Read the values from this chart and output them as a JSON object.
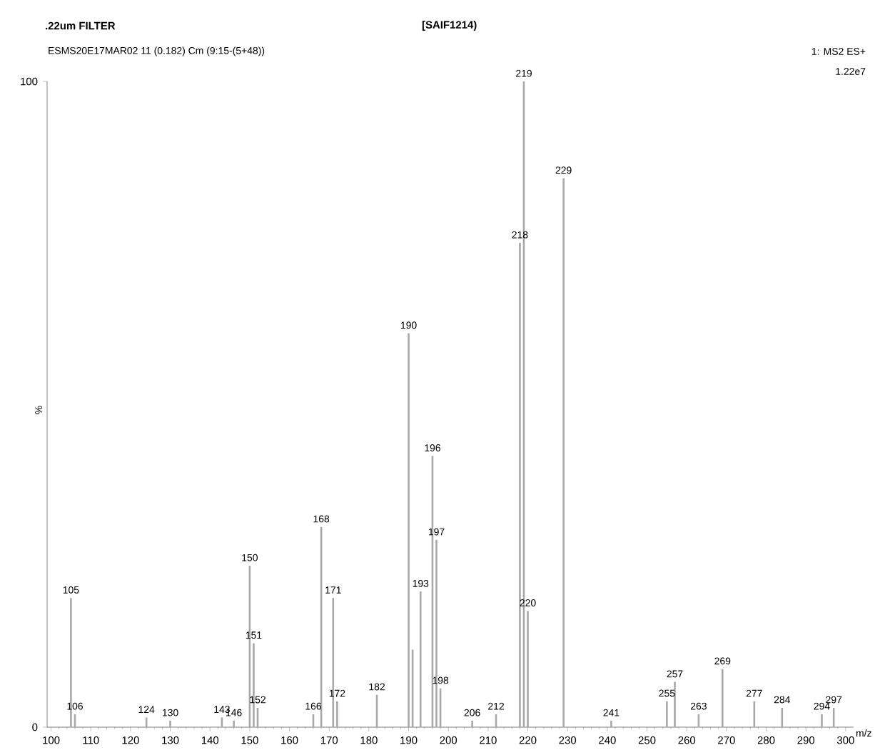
{
  "chart_data": {
    "type": "bar",
    "title": ".22um FILTER",
    "subtitle": "[SAIF1214)",
    "xlabel": "m/z",
    "ylabel": "%",
    "x": [
      105,
      106,
      124,
      130,
      143,
      146,
      150,
      151,
      152,
      166,
      168,
      171,
      172,
      182,
      190,
      191,
      193,
      196,
      197,
      198,
      206,
      212,
      218,
      219,
      220,
      229,
      241,
      255,
      257,
      263,
      269,
      277,
      284,
      294,
      297
    ],
    "values": [
      20,
      2,
      1.5,
      1,
      1.5,
      1,
      25,
      13,
      3,
      2,
      31,
      20,
      4,
      5,
      61,
      12,
      21,
      42,
      29,
      6,
      1,
      2,
      75,
      100,
      18,
      85,
      1,
      4,
      7,
      2,
      9,
      4,
      3,
      2,
      3
    ],
    "color": "#a8a8a8",
    "xlim": [
      99,
      302
    ],
    "ylim": [
      0,
      100
    ],
    "xticks": [
      100,
      110,
      120,
      130,
      140,
      150,
      160,
      170,
      180,
      190,
      200,
      210,
      220,
      230,
      240,
      250,
      260,
      270,
      280,
      290,
      300
    ],
    "yticks": [
      0,
      100
    ],
    "annotations": [
      "ESMS20E17MAR02 11 (0.182) Cm (9:15-(5+48))",
      "1: MS2 ES+",
      "1.22e7",
      {
        "text": "105",
        "x": 105,
        "y": 20
      },
      {
        "text": "106",
        "x": 106,
        "y": 2
      },
      {
        "text": "124",
        "x": 124,
        "y": 1.5
      },
      {
        "text": "130",
        "x": 130,
        "y": 1
      },
      {
        "text": "143",
        "x": 143,
        "y": 1.5
      },
      {
        "text": "146",
        "x": 146,
        "y": 1
      },
      {
        "text": "150",
        "x": 150,
        "y": 25
      },
      {
        "text": "151",
        "x": 151,
        "y": 13
      },
      {
        "text": "152",
        "x": 152,
        "y": 3
      },
      {
        "text": "166",
        "x": 166,
        "y": 2
      },
      {
        "text": "168",
        "x": 168,
        "y": 31
      },
      {
        "text": "171",
        "x": 171,
        "y": 20
      },
      {
        "text": "172",
        "x": 172,
        "y": 4
      },
      {
        "text": "182",
        "x": 182,
        "y": 5
      },
      {
        "text": "190",
        "x": 190,
        "y": 61
      },
      {
        "text": "193",
        "x": 193,
        "y": 21
      },
      {
        "text": "196",
        "x": 196,
        "y": 42
      },
      {
        "text": "197",
        "x": 197,
        "y": 29
      },
      {
        "text": "198",
        "x": 198,
        "y": 6
      },
      {
        "text": "206",
        "x": 206,
        "y": 1
      },
      {
        "text": "212",
        "x": 212,
        "y": 2
      },
      {
        "text": "218",
        "x": 218,
        "y": 75
      },
      {
        "text": "219",
        "x": 219,
        "y": 100
      },
      {
        "text": "220",
        "x": 220,
        "y": 18
      },
      {
        "text": "229",
        "x": 229,
        "y": 85
      },
      {
        "text": "241",
        "x": 241,
        "y": 1
      },
      {
        "text": "255",
        "x": 255,
        "y": 4
      },
      {
        "text": "257",
        "x": 257,
        "y": 7
      },
      {
        "text": "263",
        "x": 263,
        "y": 2
      },
      {
        "text": "269",
        "x": 269,
        "y": 9
      },
      {
        "text": "277",
        "x": 277,
        "y": 4
      },
      {
        "text": "284",
        "x": 284,
        "y": 3
      },
      {
        "text": "294",
        "x": 294,
        "y": 2
      },
      {
        "text": "297",
        "x": 297,
        "y": 3
      }
    ]
  }
}
